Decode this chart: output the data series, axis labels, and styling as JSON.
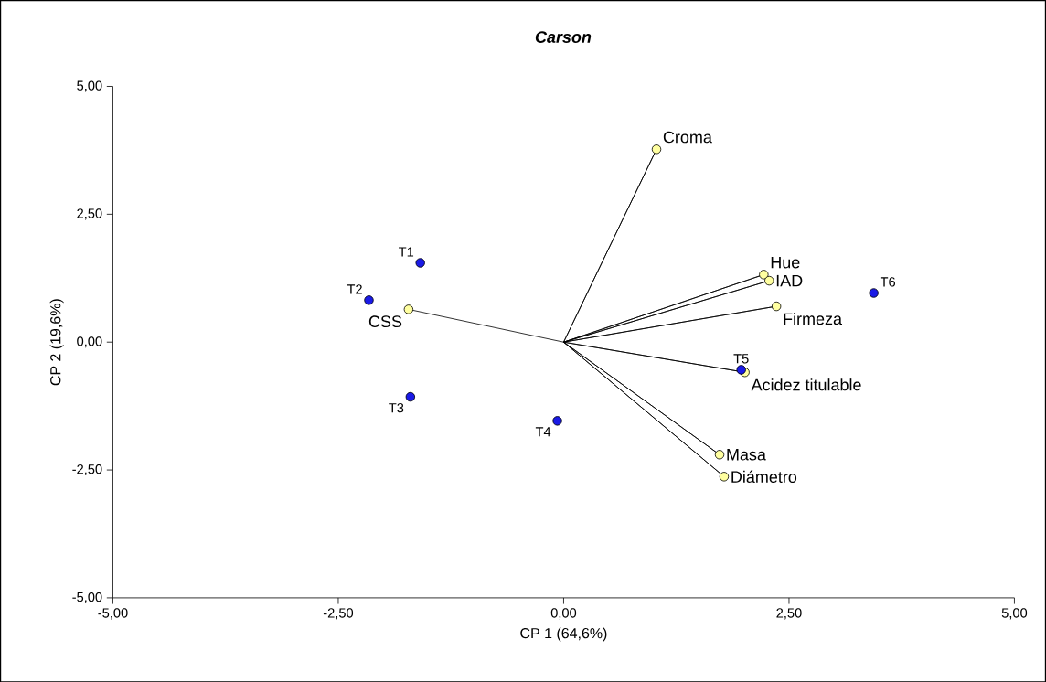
{
  "chart_data": {
    "type": "scatter",
    "title": "Carson",
    "xlabel": "CP 1 (64,6%)",
    "ylabel": "CP 2 (19,6%)",
    "xlim": [
      -5,
      5
    ],
    "ylim": [
      -5,
      5
    ],
    "xticks": [
      {
        "value": -5,
        "label": "-5,00"
      },
      {
        "value": -2.5,
        "label": "-2,50"
      },
      {
        "value": 0,
        "label": "0,00"
      },
      {
        "value": 2.5,
        "label": "2,50"
      },
      {
        "value": 5,
        "label": "5,00"
      }
    ],
    "yticks": [
      {
        "value": -5,
        "label": "-5,00"
      },
      {
        "value": -2.5,
        "label": "-2,50"
      },
      {
        "value": 0,
        "label": "0,00"
      },
      {
        "value": 2.5,
        "label": "2,50"
      },
      {
        "value": 5,
        "label": "5,00"
      }
    ],
    "series": [
      {
        "type": "line",
        "marker": "none",
        "color": "#000000",
        "x": [
          0,
          1.03,
          0,
          2.22,
          0,
          2.28,
          0,
          2.36,
          0,
          2.01,
          0,
          1.73,
          0,
          1.78,
          0,
          -1.72
        ],
        "values": [
          0,
          3.77,
          0,
          1.32,
          0,
          1.2,
          0,
          0.7,
          0,
          -0.59,
          0,
          -2.2,
          0,
          -2.63,
          0,
          0.64
        ]
      },
      {
        "marker": "circle",
        "color": "#ffffa0",
        "x": [
          1.03,
          2.22,
          2.28,
          2.36,
          2.01,
          1.73,
          1.78,
          -1.72
        ],
        "values": [
          3.77,
          1.32,
          1.2,
          0.7,
          -0.59,
          -2.2,
          -2.63,
          0.64
        ]
      },
      {
        "marker": "circle",
        "color": "#1a1ae6",
        "x": [
          -1.59,
          -2.16,
          -1.7,
          -0.07,
          1.97,
          3.44
        ],
        "values": [
          1.55,
          0.82,
          -1.07,
          -1.54,
          -0.54,
          0.96
        ]
      }
    ],
    "annotations": [
      {
        "text": "T1",
        "x": -1.59,
        "y": 1.55
      },
      {
        "text": "T2",
        "x": -2.16,
        "y": 0.82
      },
      {
        "text": "T3",
        "x": -1.7,
        "y": -1.07
      },
      {
        "text": "T4",
        "x": -0.07,
        "y": -1.54
      },
      {
        "text": "T5",
        "x": 1.97,
        "y": -0.54
      },
      {
        "text": "T6",
        "x": 3.44,
        "y": 0.96
      },
      {
        "text": "Croma",
        "x": 1.03,
        "y": 3.77
      },
      {
        "text": "Hue",
        "x": 2.22,
        "y": 1.32
      },
      {
        "text": "IAD",
        "x": 2.28,
        "y": 1.2
      },
      {
        "text": "Firmeza",
        "x": 2.36,
        "y": 0.7
      },
      {
        "text": "Acidez titulable",
        "x": 2.01,
        "y": -0.59
      },
      {
        "text": "Masa",
        "x": 1.73,
        "y": -2.2
      },
      {
        "text": "Diámetro",
        "x": 1.78,
        "y": -2.63
      },
      {
        "text": "CSS",
        "x": -1.72,
        "y": 0.64
      }
    ]
  }
}
